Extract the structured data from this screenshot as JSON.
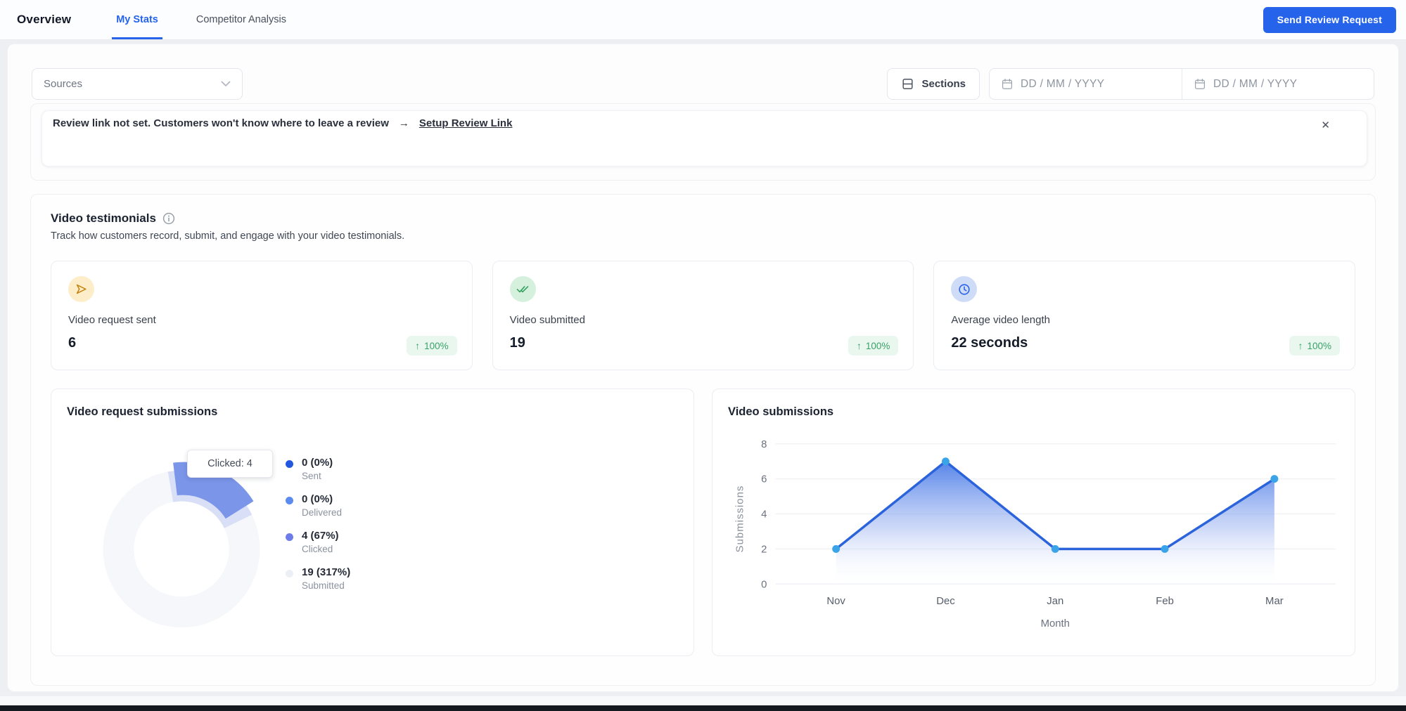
{
  "nav": {
    "title": "Overview",
    "tabs": [
      {
        "label": "My Stats",
        "active": true
      },
      {
        "label": "Competitor Analysis",
        "active": false
      }
    ],
    "cta_label": "Send Review Request"
  },
  "toolbar": {
    "sources_label": "Sources",
    "sections_label": "Sections",
    "date_from_placeholder": "DD / MM / YYYY",
    "date_to_placeholder": "DD / MM / YYYY"
  },
  "banner": {
    "message": "Review link not set. Customers won't know where to leave a review",
    "arrow": "→",
    "link_label": "Setup Review Link",
    "close": "✕"
  },
  "section": {
    "title": "Video testimonials",
    "subtitle": "Track how customers record, submit, and engage with your video testimonials."
  },
  "stats": [
    {
      "label": "Video request sent",
      "value": "6",
      "arrow": "↑",
      "delta": "100%",
      "icon": "send-icon"
    },
    {
      "label": "Video submitted",
      "value": "19",
      "arrow": "↑",
      "delta": "100%",
      "icon": "double-check-icon"
    },
    {
      "label": "Average video length",
      "value": "22 seconds",
      "arrow": "↑",
      "delta": "100%",
      "icon": "clock-icon"
    }
  ],
  "colors": {
    "accent": "#2563eb",
    "badge_bg": "#e9f7ef",
    "badge_text": "#3aa268"
  },
  "chart_data": [
    {
      "type": "pie",
      "title": "Video request submissions",
      "tooltip": "Clicked: 4",
      "slices": [
        {
          "label": "Sent",
          "value": 0,
          "display": "0 (0%)",
          "color": "#2257e0"
        },
        {
          "label": "Delivered",
          "value": 0,
          "display": "0 (0%)",
          "color": "#5c8bef"
        },
        {
          "label": "Clicked",
          "value": 4,
          "display": "4 (67%)",
          "color": "#6d7ce9"
        },
        {
          "label": "Submitted",
          "value": 19,
          "display": "19 (317%)",
          "color": "#eceff3"
        }
      ],
      "colors": {
        "ring": "#f6f7fa",
        "track": "#d9dff7",
        "active": "#7b95e9"
      },
      "legend_position": "right"
    },
    {
      "type": "area",
      "title": "Video submissions",
      "xlabel": "Month",
      "ylabel": "Submissions",
      "categories": [
        "Nov",
        "Dec",
        "Jan",
        "Feb",
        "Mar"
      ],
      "values": [
        2,
        7,
        2,
        2,
        6
      ],
      "ylim": [
        0,
        8
      ],
      "yticks": [
        0,
        2,
        4,
        6,
        8
      ],
      "grid": true,
      "colors": {
        "line": "#2b63db",
        "dot": "#3ba4e8",
        "fill_top": "#3d73e6",
        "fill_mid": "#8fa9ef"
      }
    }
  ]
}
